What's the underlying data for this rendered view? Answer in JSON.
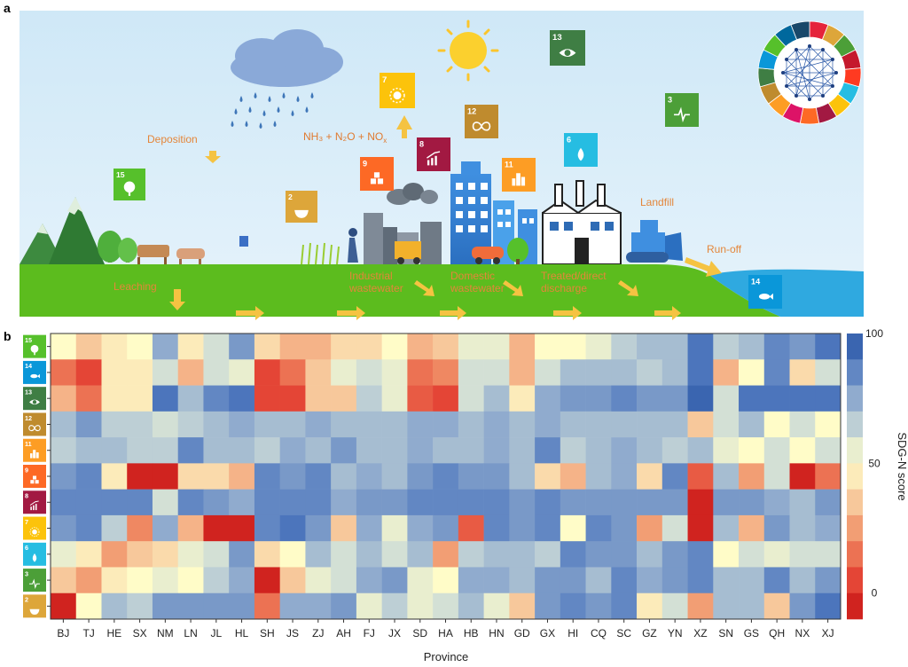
{
  "panel_a": {
    "label": "a",
    "labels": {
      "deposition": "Deposition",
      "emission_species": "NH₃ + N₂O + NO",
      "emission_sub": "x",
      "landfill": "Landfill",
      "runoff": "Run-off",
      "leaching": "Leaching",
      "industrial": [
        "Industrial",
        "wastewater"
      ],
      "domestic": [
        "Domestic",
        "wastewater"
      ],
      "treated": [
        "Treated/direct",
        "discharge"
      ]
    },
    "sdg_tiles": [
      {
        "num": "15",
        "title": "LIFE ON LAND",
        "color": "#56C02B",
        "icon": "tree-icon"
      },
      {
        "num": "2",
        "title": "ZERO HUNGER",
        "color": "#DDA63A",
        "icon": "bowl-icon"
      },
      {
        "num": "9",
        "title": "INDUSTRY, INNOVATION AND INFRASTRUCTURE",
        "color": "#FD6925",
        "icon": "cubes-icon"
      },
      {
        "num": "7",
        "title": "AFFORDABLE AND CLEAN ENERGY",
        "color": "#FCC30B",
        "icon": "sun-power-icon"
      },
      {
        "num": "8",
        "title": "DECENT WORK AND ECONOMIC GROWTH",
        "color": "#A21942",
        "icon": "growth-chart-icon"
      },
      {
        "num": "12",
        "title": "RESPONSIBLE CONSUMPTION AND PRODUCTION",
        "color": "#BF8B2E",
        "icon": "infinity-icon"
      },
      {
        "num": "11",
        "title": "SUSTAINABLE CITIES AND COMMUNITIES",
        "color": "#FD9D24",
        "icon": "city-icon"
      },
      {
        "num": "6",
        "title": "CLEAN WATER AND SANITATION",
        "color": "#26BDE2",
        "icon": "water-drop-icon"
      },
      {
        "num": "13",
        "title": "CLIMATE ACTION",
        "color": "#3F7E44",
        "icon": "eye-globe-icon"
      },
      {
        "num": "3",
        "title": "GOOD HEALTH AND WELL-BEING",
        "color": "#4C9F38",
        "icon": "heartbeat-icon"
      },
      {
        "num": "14",
        "title": "LIFE BELOW WATER",
        "color": "#0A97D9",
        "icon": "fish-icon"
      }
    ]
  },
  "panel_b": {
    "label": "b",
    "chart_data": {
      "type": "heatmap",
      "xlabel": "Province",
      "colorbar_label": "SDG-N score",
      "colorbar_ticks": [
        0,
        50,
        100
      ],
      "value_range": [
        -10,
        100
      ],
      "columns": [
        "BJ",
        "TJ",
        "HE",
        "SX",
        "NM",
        "LN",
        "JL",
        "HL",
        "SH",
        "JS",
        "ZJ",
        "AH",
        "FJ",
        "JX",
        "SD",
        "HA",
        "HB",
        "HN",
        "GD",
        "GX",
        "HI",
        "CQ",
        "SC",
        "GZ",
        "YN",
        "XZ",
        "SN",
        "GS",
        "QH",
        "NX",
        "XJ"
      ],
      "rows": [
        {
          "sdg": "15",
          "values": [
            50,
            35,
            45,
            50,
            75,
            45,
            60,
            80,
            40,
            30,
            30,
            40,
            40,
            50,
            30,
            35,
            55,
            55,
            30,
            50,
            50,
            55,
            65,
            70,
            70,
            90,
            65,
            70,
            85,
            80,
            90
          ]
        },
        {
          "sdg": "14",
          "values": [
            15,
            5,
            45,
            45,
            60,
            30,
            60,
            55,
            5,
            15,
            35,
            55,
            60,
            55,
            15,
            20,
            60,
            60,
            30,
            60,
            70,
            70,
            70,
            65,
            70,
            90,
            30,
            50,
            85,
            40,
            60
          ]
        },
        {
          "sdg": "13",
          "values": [
            30,
            15,
            45,
            45,
            90,
            70,
            85,
            90,
            5,
            5,
            35,
            35,
            65,
            55,
            10,
            5,
            60,
            70,
            45,
            75,
            80,
            80,
            85,
            80,
            80,
            95,
            60,
            90,
            90,
            90,
            90
          ]
        },
        {
          "sdg": "12",
          "values": [
            70,
            80,
            65,
            65,
            60,
            65,
            70,
            75,
            70,
            70,
            75,
            70,
            70,
            70,
            75,
            75,
            70,
            75,
            70,
            75,
            70,
            70,
            70,
            70,
            70,
            35,
            60,
            70,
            50,
            60,
            50
          ]
        },
        {
          "sdg": "11",
          "values": [
            65,
            70,
            70,
            65,
            65,
            85,
            70,
            70,
            65,
            75,
            70,
            80,
            70,
            70,
            75,
            70,
            70,
            75,
            70,
            85,
            65,
            70,
            75,
            70,
            65,
            70,
            55,
            50,
            60,
            50,
            60
          ]
        },
        {
          "sdg": "9",
          "values": [
            80,
            85,
            45,
            -5,
            -5,
            40,
            40,
            30,
            85,
            80,
            85,
            70,
            75,
            70,
            80,
            85,
            80,
            80,
            70,
            40,
            30,
            70,
            75,
            40,
            85,
            10,
            70,
            25,
            60,
            -5,
            15
          ]
        },
        {
          "sdg": "8",
          "values": [
            85,
            85,
            85,
            85,
            60,
            85,
            80,
            75,
            85,
            85,
            85,
            75,
            80,
            80,
            85,
            85,
            85,
            85,
            80,
            85,
            80,
            80,
            80,
            80,
            80,
            -5,
            80,
            80,
            75,
            70,
            80
          ]
        },
        {
          "sdg": "7",
          "values": [
            80,
            85,
            65,
            20,
            75,
            30,
            -5,
            -5,
            85,
            90,
            80,
            35,
            75,
            55,
            75,
            80,
            10,
            85,
            80,
            85,
            50,
            85,
            80,
            25,
            60,
            -5,
            70,
            30,
            80,
            70,
            75
          ]
        },
        {
          "sdg": "6",
          "values": [
            55,
            45,
            25,
            35,
            40,
            55,
            60,
            80,
            40,
            50,
            70,
            60,
            70,
            60,
            70,
            25,
            65,
            70,
            70,
            65,
            85,
            80,
            80,
            70,
            80,
            85,
            50,
            60,
            55,
            60,
            60
          ]
        },
        {
          "sdg": "3",
          "values": [
            35,
            25,
            45,
            50,
            55,
            50,
            65,
            75,
            -5,
            35,
            55,
            60,
            75,
            80,
            55,
            50,
            75,
            75,
            70,
            80,
            80,
            70,
            85,
            75,
            80,
            85,
            70,
            70,
            85,
            70,
            80
          ]
        },
        {
          "sdg": "2",
          "values": [
            -5,
            50,
            70,
            65,
            80,
            80,
            80,
            80,
            15,
            75,
            75,
            80,
            55,
            65,
            55,
            60,
            70,
            55,
            35,
            80,
            85,
            80,
            85,
            45,
            60,
            25,
            70,
            70,
            35,
            80,
            90
          ]
        }
      ]
    }
  }
}
